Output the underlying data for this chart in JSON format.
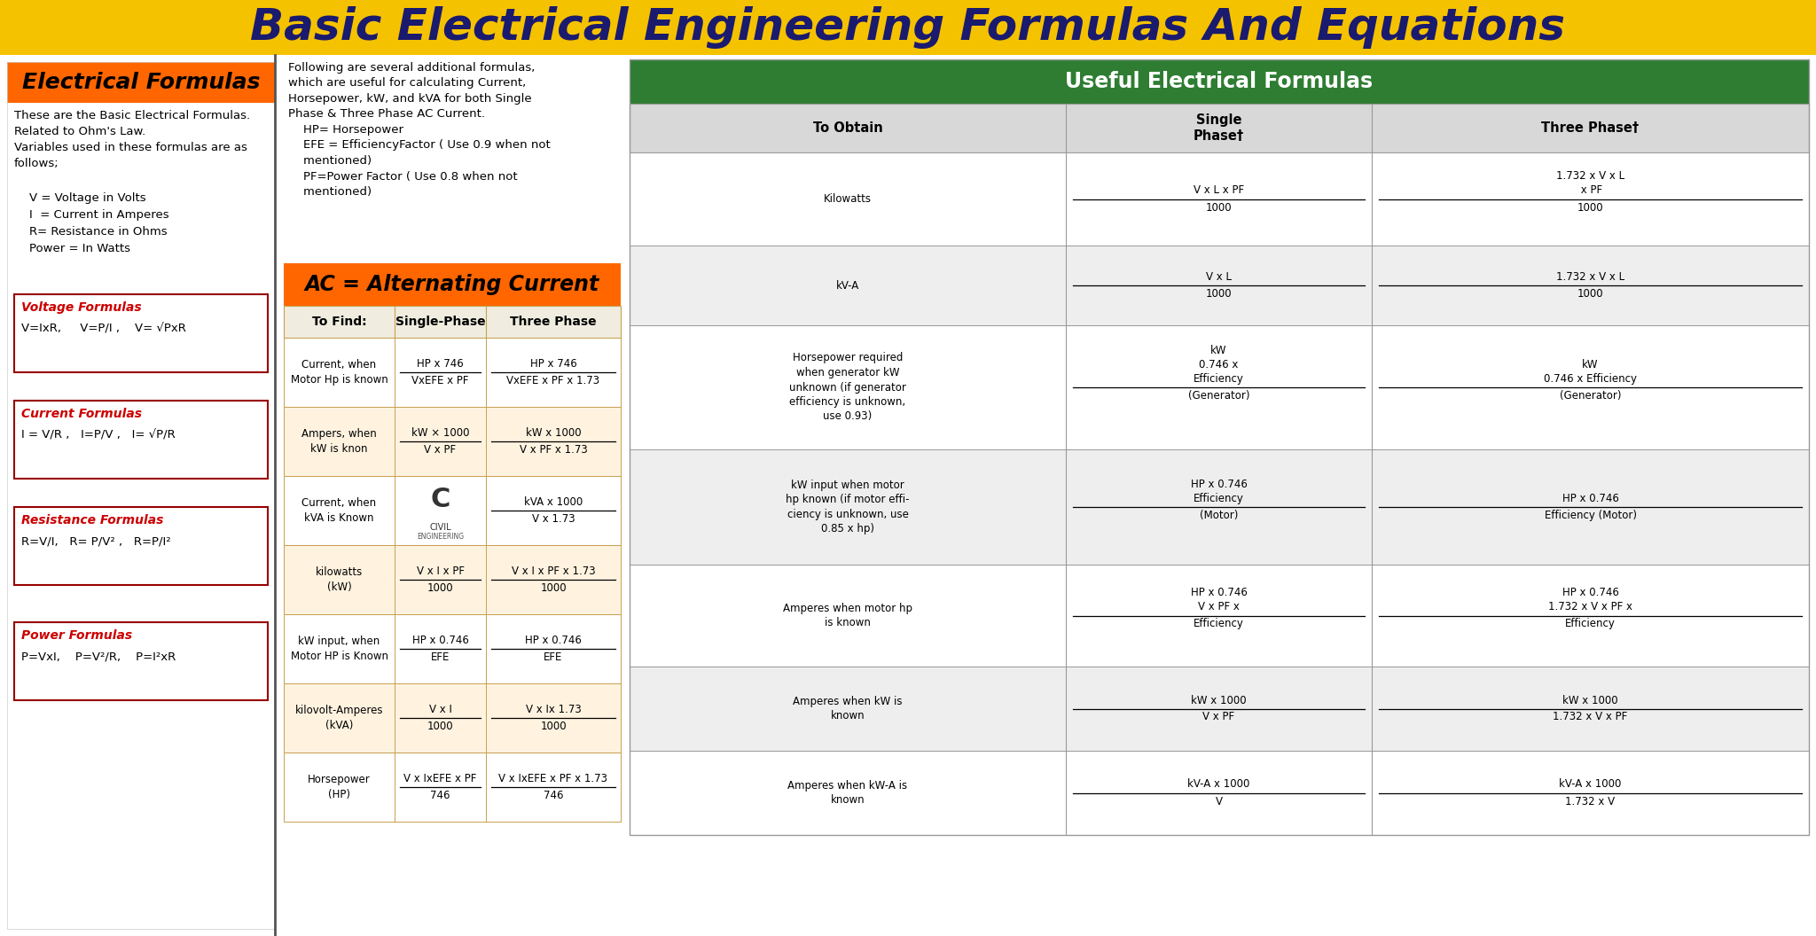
{
  "title": "Basic Electrical Engineering Formulas And Equations",
  "title_bg": "#F5C200",
  "title_color": "#1a1a6e",
  "main_bg": "#ffffff",
  "left_panel": {
    "header": "Electrical Formulas",
    "header_bg": "#FF6600",
    "intro": "These are the Basic Electrical Formulas.\nRelated to Ohm's Law.\nVariables used in these formulas are as\nfollows;",
    "variables": "    V = Voltage in Volts\n    I  = Current in Amperes\n    R= Resistance in Ohms\n    Power = In Watts",
    "boxes": [
      {
        "label": "Voltage Formulas",
        "formulas": "V=IxR,     V=P/I ,    V= √PxR"
      },
      {
        "label": "Current Formulas",
        "formulas": "I = V/R ,   I=P/V ,   I= √P/R"
      },
      {
        "label": "Resistance Formulas",
        "formulas": "R=V/I,   R= P/V² ,   R=P/I²"
      },
      {
        "label": "Power Formulas",
        "formulas": "P=VxI,    P=V²/R,    P=I²xR"
      }
    ]
  },
  "middle_top_text": "Following are several additional formulas,\nwhich are useful for calculating Current,\nHorsepower, kW, and kVA for both Single\nPhase & Three Phase AC Current.\n    HP= Horsepower\n    EFE = EfficiencyFactor ( Use 0.9 when not\n    mentioned)\n    PF=Power Factor ( Use 0.8 when not\n    mentioned)",
  "ac_table": {
    "header": "AC = Alternating Current",
    "header_bg": "#FF6600",
    "col_headers": [
      "To Find:",
      "Single-Phase",
      "Three Phase"
    ],
    "rows": [
      {
        "label": "Current, when\nMotor Hp is known",
        "single_num": "HP x 746",
        "single_den": "VxEFE x PF",
        "three_num": "HP x 746",
        "three_den": "VxEFE x PF x 1.73"
      },
      {
        "label": "Ampers, when\nkW is knon",
        "single_num": "kW × 1000",
        "single_den": "V x PF",
        "three_num": "kW x 1000",
        "three_den": "V x PF x 1.73"
      },
      {
        "label": "Current, when\nkVA is Known",
        "single_num": "Civil",
        "single_den": "",
        "three_num": "kVA x 1000",
        "three_den": "V x 1.73",
        "civil_logo": true
      },
      {
        "label": "kilowatts\n(kW)",
        "single_num": "V x I x PF",
        "single_den": "1000",
        "three_num": "V x I x PF x 1.73",
        "three_den": "1000"
      },
      {
        "label": "kW input, when\nMotor HP is Known",
        "single_num": "HP x 0.746",
        "single_den": "EFE",
        "three_num": "HP x 0.746",
        "three_den": "EFE"
      },
      {
        "label": "kilovolt-Amperes\n(kVA)",
        "single_num": "V x I",
        "single_den": "1000",
        "three_num": "V x Ix 1.73",
        "three_den": "1000"
      },
      {
        "label": "Horsepower\n(HP)",
        "single_num": "V x IxEFE x PF",
        "single_den": "746",
        "three_num": "V x IxEFE x PF x 1.73",
        "three_den": "746"
      }
    ]
  },
  "right_table": {
    "header": "Useful Electrical Formulas",
    "header_bg": "#2E7D32",
    "header_color": "#ffffff",
    "col_headers": [
      "To Obtain",
      "Single\nPhase†",
      "Three Phase†"
    ],
    "rows": [
      {
        "label": "Kilowatts",
        "s_num": "V x L x PF",
        "s_den": "1000",
        "t_num": "1.732 x V x L\n x PF",
        "t_den": "1000"
      },
      {
        "label": "kV-A",
        "s_num": "V x L",
        "s_den": "1000",
        "t_num": "1.732 x V x L",
        "t_den": "1000"
      },
      {
        "label": "Horsepower required\nwhen generator kW\nunknown (if generator\nefficiency is unknown,\nuse 0.93)",
        "s_num": "kW\n0.746 x\nEfficiency",
        "s_den": "(Generator)",
        "t_num": "kW\n0.746 x Efficiency",
        "t_den": "(Generator)"
      },
      {
        "label": "kW input when motor\nhp known (if motor effi-\nciency is unknown, use\n0.85 x hp)",
        "s_num": "HP x 0.746\nEfficiency",
        "s_den": "(Motor)",
        "t_num": "HP x 0.746",
        "t_den": "Efficiency (Motor)"
      },
      {
        "label": "Amperes when motor hp\nis known",
        "s_num": "HP x 0.746\nV x PF x",
        "s_den": "Efficiency",
        "t_num": "HP x 0.746\n1.732 x V x PF x",
        "t_den": "Efficiency"
      },
      {
        "label": "Amperes when kW is\nknown",
        "s_num": "kW x 1000",
        "s_den": "V x PF",
        "t_num": "kW x 1000",
        "t_den": "1.732 x V x PF"
      },
      {
        "label": "Amperes when kW-A is\nknown",
        "s_num": "kV-A x 1000",
        "s_den": "V",
        "t_num": "kV-A x 1000",
        "t_den": "1.732 x V"
      }
    ]
  }
}
